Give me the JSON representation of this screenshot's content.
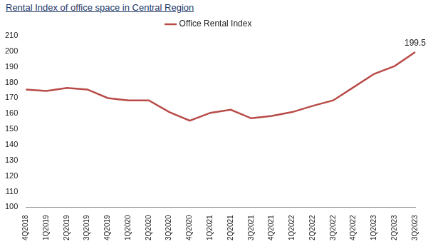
{
  "chart_data": {
    "type": "line",
    "title": "Rental Index of office space in Central Region",
    "categories": [
      "4Q2018",
      "1Q2019",
      "2Q2019",
      "3Q2019",
      "4Q2019",
      "1Q2020",
      "2Q2020",
      "3Q2020",
      "4Q2020",
      "1Q2021",
      "2Q2021",
      "3Q2021",
      "4Q2021",
      "1Q2022",
      "2Q2022",
      "3Q2022",
      "4Q2022",
      "1Q2023",
      "2Q2023",
      "3Q2023"
    ],
    "series": [
      {
        "name": "Office Rental Index",
        "color": "#b84b48",
        "values": [
          175.5,
          174.5,
          176.5,
          175.5,
          170,
          168.5,
          168.5,
          161,
          155.5,
          160.5,
          162.5,
          157,
          158.5,
          161,
          165,
          168.5,
          177,
          185.5,
          190.5,
          199.5
        ]
      }
    ],
    "ylim": [
      100,
      210
    ],
    "yticks": [
      100,
      110,
      120,
      130,
      140,
      150,
      160,
      170,
      180,
      190,
      200,
      210
    ],
    "grid": false,
    "legend": "top",
    "annotations": [
      {
        "text": "199.5",
        "x": "3Q2023",
        "y": 199.5
      }
    ]
  }
}
